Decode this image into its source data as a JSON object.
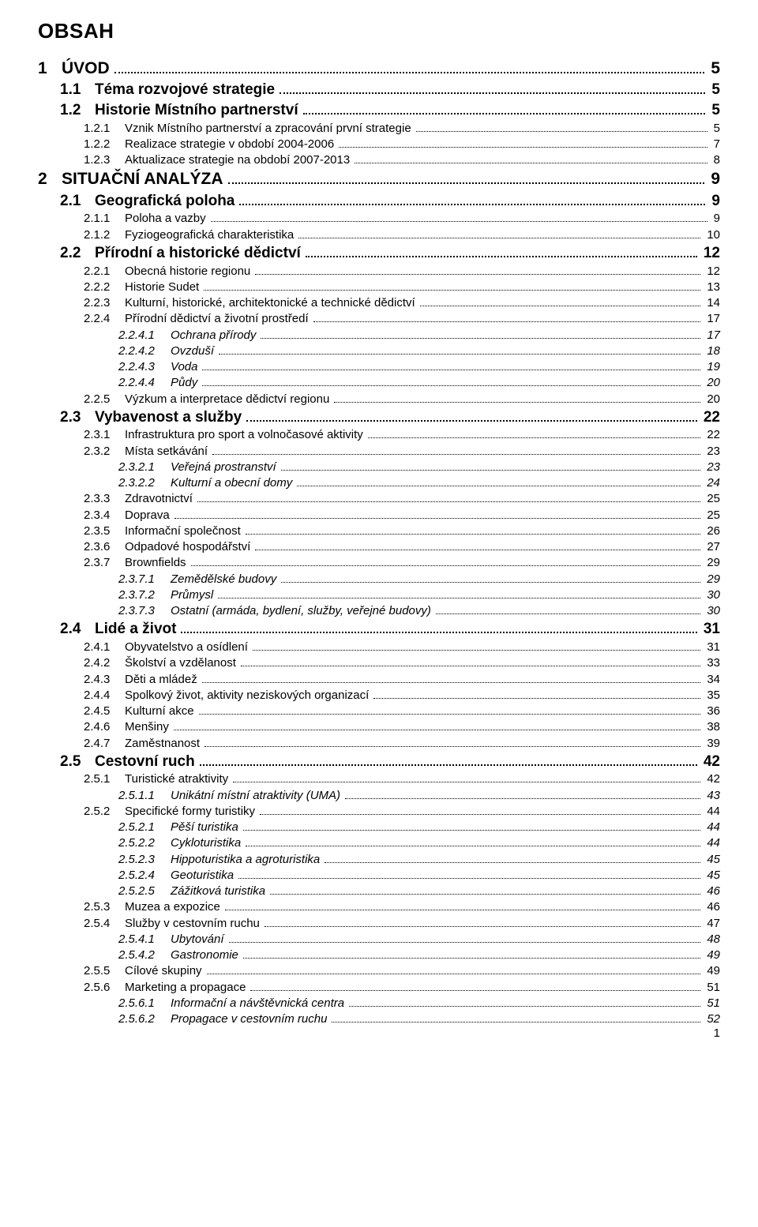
{
  "heading": "OBSAH",
  "page_number": "1",
  "entries": [
    {
      "level": 0,
      "num": "1",
      "title": "ÚVOD",
      "page": "5"
    },
    {
      "level": 1,
      "num": "1.1",
      "title": "Téma rozvojové strategie",
      "page": "5"
    },
    {
      "level": 1,
      "num": "1.2",
      "title": "Historie Místního partnerství",
      "page": "5"
    },
    {
      "level": 2,
      "num": "1.2.1",
      "title": "Vznik Místního partnerství a zpracování první strategie",
      "page": "5"
    },
    {
      "level": 2,
      "num": "1.2.2",
      "title": "Realizace strategie v období 2004-2006",
      "page": "7"
    },
    {
      "level": 2,
      "num": "1.2.3",
      "title": "Aktualizace strategie na období 2007-2013",
      "page": "8"
    },
    {
      "level": 0,
      "num": "2",
      "title": "SITUAČNÍ ANALÝZA",
      "page": "9"
    },
    {
      "level": 1,
      "num": "2.1",
      "title": "Geografická poloha",
      "page": "9"
    },
    {
      "level": 2,
      "num": "2.1.1",
      "title": "Poloha a vazby",
      "page": "9"
    },
    {
      "level": 2,
      "num": "2.1.2",
      "title": "Fyziogeografická charakteristika",
      "page": "10"
    },
    {
      "level": 1,
      "num": "2.2",
      "title": "Přírodní a historické dědictví",
      "page": "12"
    },
    {
      "level": 2,
      "num": "2.2.1",
      "title": "Obecná historie regionu",
      "page": "12"
    },
    {
      "level": 2,
      "num": "2.2.2",
      "title": "Historie Sudet",
      "page": "13"
    },
    {
      "level": 2,
      "num": "2.2.3",
      "title": "Kulturní, historické, architektonické a technické dědictví",
      "page": "14"
    },
    {
      "level": 2,
      "num": "2.2.4",
      "title": "Přírodní dědictví a životní prostředí",
      "page": "17"
    },
    {
      "level": 3,
      "num": "2.2.4.1",
      "title": "Ochrana přírody",
      "page": "17"
    },
    {
      "level": 3,
      "num": "2.2.4.2",
      "title": "Ovzduší",
      "page": "18"
    },
    {
      "level": 3,
      "num": "2.2.4.3",
      "title": "Voda",
      "page": "19"
    },
    {
      "level": 3,
      "num": "2.2.4.4",
      "title": "Půdy",
      "page": "20"
    },
    {
      "level": 2,
      "num": "2.2.5",
      "title": "Výzkum a interpretace dědictví regionu",
      "page": "20"
    },
    {
      "level": 1,
      "num": "2.3",
      "title": "Vybavenost a služby",
      "page": "22"
    },
    {
      "level": 2,
      "num": "2.3.1",
      "title": "Infrastruktura pro sport a volnočasové aktivity",
      "page": "22"
    },
    {
      "level": 2,
      "num": "2.3.2",
      "title": "Místa setkávání",
      "page": "23"
    },
    {
      "level": 3,
      "num": "2.3.2.1",
      "title": "Veřejná prostranství",
      "page": "23"
    },
    {
      "level": 3,
      "num": "2.3.2.2",
      "title": "Kulturní a obecní domy",
      "page": "24"
    },
    {
      "level": 2,
      "num": "2.3.3",
      "title": "Zdravotnictví",
      "page": "25"
    },
    {
      "level": 2,
      "num": "2.3.4",
      "title": "Doprava",
      "page": "25"
    },
    {
      "level": 2,
      "num": "2.3.5",
      "title": "Informační společnost",
      "page": "26"
    },
    {
      "level": 2,
      "num": "2.3.6",
      "title": "Odpadové hospodářství",
      "page": "27"
    },
    {
      "level": 2,
      "num": "2.3.7",
      "title": "Brownfields",
      "page": "29"
    },
    {
      "level": 3,
      "num": "2.3.7.1",
      "title": "Zemědělské budovy",
      "page": "29"
    },
    {
      "level": 3,
      "num": "2.3.7.2",
      "title": "Průmysl",
      "page": "30"
    },
    {
      "level": 3,
      "num": "2.3.7.3",
      "title": "Ostatní (armáda, bydlení, služby, veřejné budovy)",
      "page": "30"
    },
    {
      "level": 1,
      "num": "2.4",
      "title": "Lidé a život",
      "page": "31"
    },
    {
      "level": 2,
      "num": "2.4.1",
      "title": "Obyvatelstvo a osídlení",
      "page": "31"
    },
    {
      "level": 2,
      "num": "2.4.2",
      "title": "Školství a vzdělanost",
      "page": "33"
    },
    {
      "level": 2,
      "num": "2.4.3",
      "title": "Děti a mládež",
      "page": "34"
    },
    {
      "level": 2,
      "num": "2.4.4",
      "title": "Spolkový život, aktivity neziskových organizací",
      "page": "35"
    },
    {
      "level": 2,
      "num": "2.4.5",
      "title": "Kulturní akce",
      "page": "36"
    },
    {
      "level": 2,
      "num": "2.4.6",
      "title": "Menšiny",
      "page": "38"
    },
    {
      "level": 2,
      "num": "2.4.7",
      "title": "Zaměstnanost",
      "page": "39"
    },
    {
      "level": 1,
      "num": "2.5",
      "title": "Cestovní ruch",
      "page": "42"
    },
    {
      "level": 2,
      "num": "2.5.1",
      "title": "Turistické atraktivity",
      "page": "42"
    },
    {
      "level": 3,
      "num": "2.5.1.1",
      "title": "Unikátní místní atraktivity (UMA)",
      "page": "43"
    },
    {
      "level": 2,
      "num": "2.5.2",
      "title": "Specifické formy turistiky",
      "page": "44"
    },
    {
      "level": 3,
      "num": "2.5.2.1",
      "title": "Pěší turistika",
      "page": "44"
    },
    {
      "level": 3,
      "num": "2.5.2.2",
      "title": "Cykloturistika",
      "page": "44"
    },
    {
      "level": 3,
      "num": "2.5.2.3",
      "title": "Hippoturistika a agroturistika",
      "page": "45"
    },
    {
      "level": 3,
      "num": "2.5.2.4",
      "title": "Geoturistika",
      "page": "45"
    },
    {
      "level": 3,
      "num": "2.5.2.5",
      "title": "Zážitková turistika",
      "page": "46"
    },
    {
      "level": 2,
      "num": "2.5.3",
      "title": "Muzea a expozice",
      "page": "46"
    },
    {
      "level": 2,
      "num": "2.5.4",
      "title": "Služby v cestovním ruchu",
      "page": "47"
    },
    {
      "level": 3,
      "num": "2.5.4.1",
      "title": "Ubytování",
      "page": "48"
    },
    {
      "level": 3,
      "num": "2.5.4.2",
      "title": "Gastronomie",
      "page": "49"
    },
    {
      "level": 2,
      "num": "2.5.5",
      "title": "Cílové skupiny",
      "page": "49"
    },
    {
      "level": 2,
      "num": "2.5.6",
      "title": "Marketing a propagace",
      "page": "51"
    },
    {
      "level": 3,
      "num": "2.5.6.1",
      "title": "Informační a návštěvnická centra",
      "page": "51"
    },
    {
      "level": 3,
      "num": "2.5.6.2",
      "title": "Propagace v cestovním ruchu",
      "page": "52"
    }
  ]
}
